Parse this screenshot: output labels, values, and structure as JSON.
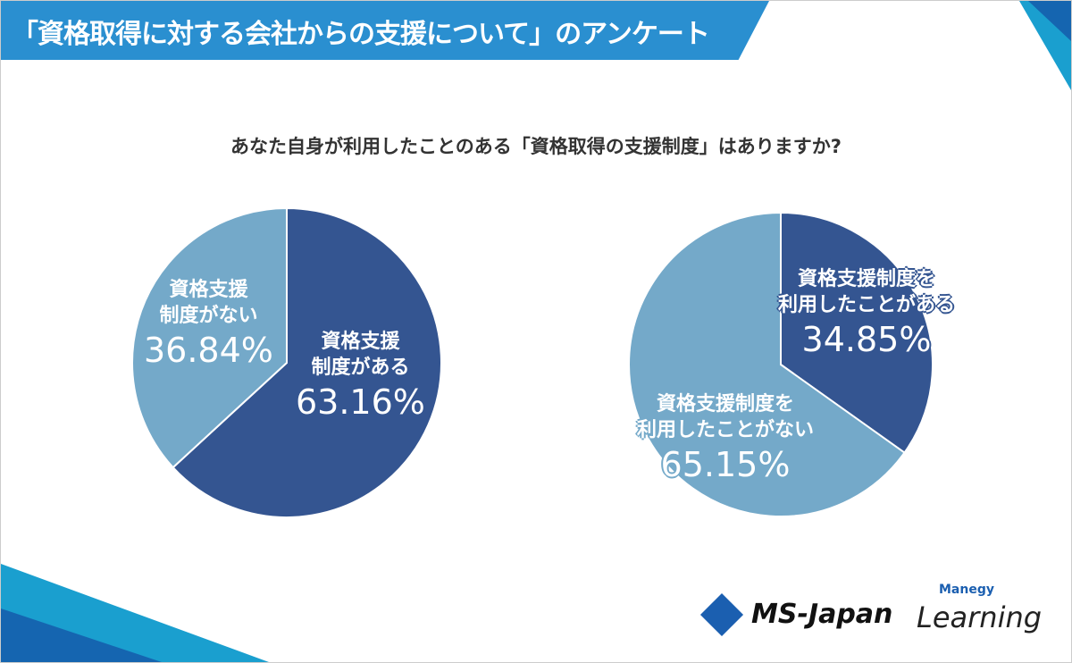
{
  "header": {
    "title": "「資格取得に対する会社からの支援について」のアンケート"
  },
  "question": "あなた自身が利用したことのある「資格取得の支援制度」はありますか?",
  "colors": {
    "dark": "#345591",
    "light": "#74a9c9",
    "banner": "#2a8fd0"
  },
  "chart_data": [
    {
      "type": "pie",
      "title": "",
      "slices": [
        {
          "label_line1": "資格支援",
          "label_line2": "制度がある",
          "value": 63.16,
          "display": "63.16%",
          "color": "#345591"
        },
        {
          "label_line1": "資格支援",
          "label_line2": "制度がない",
          "value": 36.84,
          "display": "36.84%",
          "color": "#74a9c9"
        }
      ]
    },
    {
      "type": "pie",
      "title": "",
      "slices": [
        {
          "label_line1": "資格支援制度を",
          "label_line2": "利用したことがある",
          "value": 34.85,
          "display": "34.85%",
          "color": "#345591"
        },
        {
          "label_line1": "資格支援制度を",
          "label_line2": "利用したことがない",
          "value": 65.15,
          "display": "65.15%",
          "color": "#74a9c9"
        }
      ]
    }
  ],
  "logos": {
    "ms_japan": "MS-Japan",
    "manegy": "Manegy",
    "learning": "Learning"
  }
}
